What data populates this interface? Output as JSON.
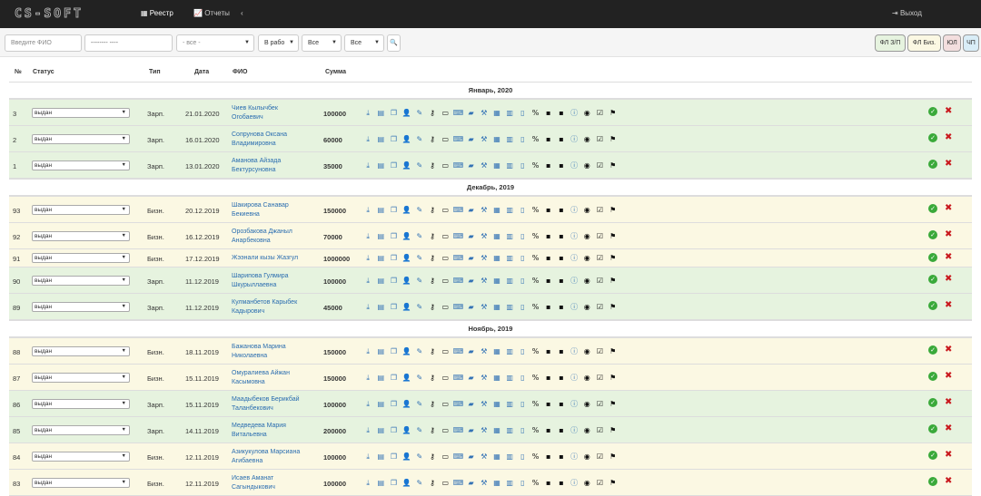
{
  "navbar": {
    "logo": "CS-SOFT",
    "registry_label": "Реестр",
    "reports_label": "Отчеты",
    "collapse_glyph": "‹",
    "logout_label": "Выход"
  },
  "filters": {
    "fio_placeholder": "Введите ФИО",
    "date_placeholder": "-------- ----",
    "select_all": "- все -",
    "in_work": "В рабо",
    "all1": "Все",
    "all2": "Все",
    "search_icon": "search-icon"
  },
  "categories": [
    "ФЛ З/П",
    "ФЛ Биз.",
    "ЮЛ",
    "ЧП"
  ],
  "colors": {
    "zarp": "#e6f3df",
    "bizn": "#fbf8e3",
    "ok": "#3aa93a",
    "del": "#c9191e",
    "link": "#2a6db0"
  },
  "columns": {
    "num": "№",
    "status": "Статус",
    "type": "Тип",
    "date": "Дата",
    "fio": "ФИО",
    "sum": "Сумма"
  },
  "groups": [
    {
      "title": "Январь, 2020",
      "rows": [
        {
          "num": "3",
          "status": "выдан",
          "type": "Зарп.",
          "date": "21.01.2020",
          "fio": "Чиев Кылычбек Огобаевич",
          "sum": "100000",
          "kind": "zarp"
        },
        {
          "num": "2",
          "status": "выдан",
          "type": "Зарп.",
          "date": "16.01.2020",
          "fio": "Сопрунова Оксана Владимировна",
          "sum": "60000",
          "kind": "zarp"
        },
        {
          "num": "1",
          "status": "выдан",
          "type": "Зарп.",
          "date": "13.01.2020",
          "fio": "Аманова Айзада Бектурсуновна",
          "sum": "35000",
          "kind": "zarp"
        }
      ]
    },
    {
      "title": "Декабрь, 2019",
      "rows": [
        {
          "num": "93",
          "status": "выдан",
          "type": "Бизн.",
          "date": "20.12.2019",
          "fio": "Шакирова Санавар Бекиевна",
          "sum": "150000",
          "kind": "bizn"
        },
        {
          "num": "92",
          "status": "выдан",
          "type": "Бизн.",
          "date": "16.12.2019",
          "fio": "Орозбакова Джаныл Анарбековна",
          "sum": "70000",
          "kind": "bizn"
        },
        {
          "num": "91",
          "status": "выдан",
          "type": "Бизн.",
          "date": "17.12.2019",
          "fio": "Жээнали кызы Жазгул",
          "sum": "1000000",
          "kind": "bizn",
          "short": true
        },
        {
          "num": "90",
          "status": "выдан",
          "type": "Зарп.",
          "date": "11.12.2019",
          "fio": "Шарипова Гулмира Шкурыллаевна",
          "sum": "100000",
          "kind": "zarp"
        },
        {
          "num": "89",
          "status": "выдан",
          "type": "Зарп.",
          "date": "11.12.2019",
          "fio": "Кулманбетов Карыбек Кадырович",
          "sum": "45000",
          "kind": "zarp"
        }
      ]
    },
    {
      "title": "Ноябрь, 2019",
      "rows": [
        {
          "num": "88",
          "status": "выдан",
          "type": "Бизн.",
          "date": "18.11.2019",
          "fio": "Бажанова Марина Николаевна",
          "sum": "150000",
          "kind": "bizn"
        },
        {
          "num": "87",
          "status": "выдан",
          "type": "Бизн.",
          "date": "15.11.2019",
          "fio": "Омуралиева Айжан Касымовна",
          "sum": "150000",
          "kind": "bizn"
        },
        {
          "num": "86",
          "status": "выдан",
          "type": "Зарп.",
          "date": "15.11.2019",
          "fio": "Маадыбеков Берикбай Таланбекович",
          "sum": "100000",
          "kind": "zarp"
        },
        {
          "num": "85",
          "status": "выдан",
          "type": "Зарп.",
          "date": "14.11.2019",
          "fio": "Медведева Мария Витальевна",
          "sum": "200000",
          "kind": "zarp"
        },
        {
          "num": "84",
          "status": "выдан",
          "type": "Бизн.",
          "date": "12.11.2019",
          "fio": "Азикукулова Марсиана Агибаевна",
          "sum": "100000",
          "kind": "bizn"
        },
        {
          "num": "83",
          "status": "выдан",
          "type": "Бизн.",
          "date": "12.11.2019",
          "fio": "Исаев Аманат Сагындыкович",
          "sum": "100000",
          "kind": "bizn"
        }
      ]
    }
  ],
  "action_icons": [
    "download-icon",
    "doc-icon",
    "copy-icon",
    "user-plus-icon",
    "edit-icon",
    "key-icon",
    "desktop-icon",
    "laptop-icon",
    "book-icon",
    "gavel-icon",
    "table-icon",
    "calendar-icon",
    "file-icon",
    "percent-icon",
    "briefcase-icon",
    "suitcase-icon",
    "info-icon",
    "eye-icon",
    "check-square-icon",
    "flag-icon"
  ]
}
